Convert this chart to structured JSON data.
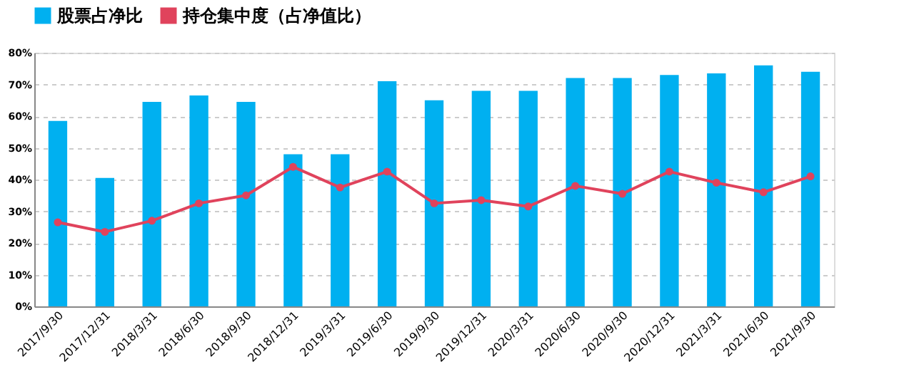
{
  "chart_data": {
    "type": "bar",
    "categories": [
      "2017/9/30",
      "2017/12/31",
      "2018/3/31",
      "2018/6/30",
      "2018/9/30",
      "2018/12/31",
      "2019/3/31",
      "2019/6/30",
      "2019/9/30",
      "2019/12/31",
      "2020/3/31",
      "2020/6/30",
      "2020/9/30",
      "2020/12/31",
      "2021/3/31",
      "2021/6/30",
      "2021/9/30"
    ],
    "series": [
      {
        "name": "股票占净比",
        "color": "#00b0f0",
        "values": [
          58.5,
          40.5,
          64.5,
          66.5,
          64.5,
          48,
          48,
          71,
          65,
          68,
          68,
          72,
          72,
          73,
          73.5,
          76,
          74
        ]
      },
      {
        "name": "持仓集中度（占净值比）",
        "type": "line",
        "color": "#e0435c",
        "marker": "circle",
        "values": [
          26.5,
          23.5,
          27,
          32.5,
          35,
          44,
          37.5,
          42.5,
          32.5,
          33.5,
          31.5,
          38,
          35.5,
          42.5,
          39,
          36,
          41
        ]
      }
    ],
    "ylim": [
      0,
      80
    ],
    "yticks": [
      {
        "value": 0,
        "label": "0%"
      },
      {
        "value": 10,
        "label": "10%"
      },
      {
        "value": 20,
        "label": "20%"
      },
      {
        "value": 30,
        "label": "30%"
      },
      {
        "value": 40,
        "label": "40%"
      },
      {
        "value": 50,
        "label": "50%"
      },
      {
        "value": 60,
        "label": "60%"
      },
      {
        "value": 70,
        "label": "70%"
      },
      {
        "value": 80,
        "label": "80%"
      }
    ],
    "grid": "y",
    "legend": "top"
  }
}
